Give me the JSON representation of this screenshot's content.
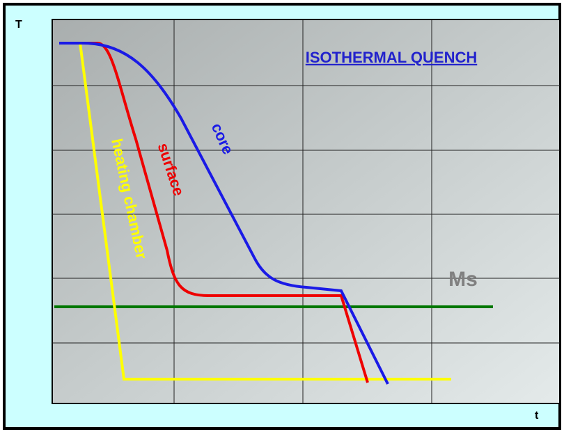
{
  "axis_labels": {
    "y": "T",
    "x": "t"
  },
  "title": "ISOTHERMAL QUENCH",
  "annotations": {
    "ms": "Ms",
    "core": "core",
    "surface": "surface",
    "heating_chamber": "heating chamber"
  }
}
